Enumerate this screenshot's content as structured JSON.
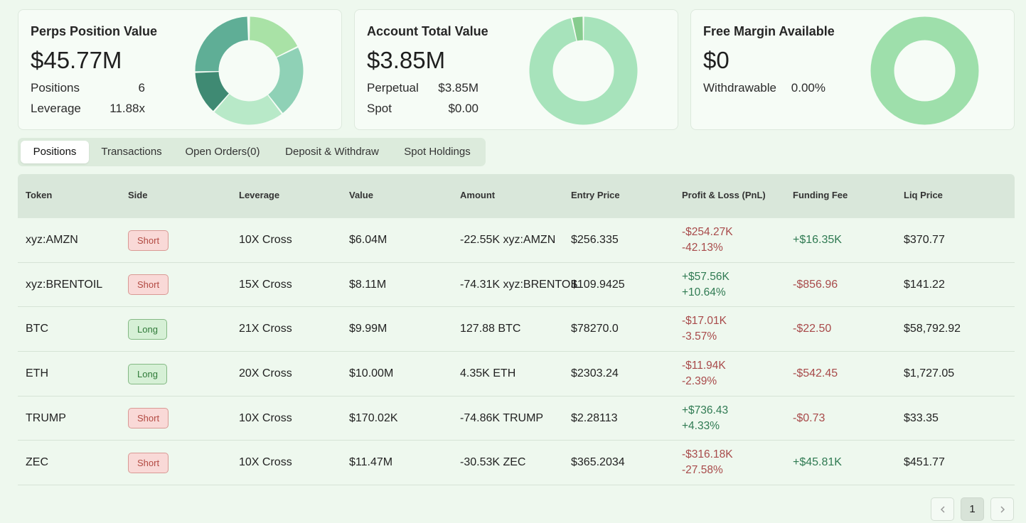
{
  "cards": [
    {
      "title": "Perps Position Value",
      "value": "$45.77M",
      "rows": [
        {
          "label": "Positions",
          "value": "6"
        },
        {
          "label": "Leverage",
          "value": "11.88x"
        }
      ]
    },
    {
      "title": "Account Total Value",
      "value": "$3.85M",
      "rows": [
        {
          "label": "Perpetual",
          "value": "$3.85M"
        },
        {
          "label": "Spot",
          "value": "$0.00"
        }
      ]
    },
    {
      "title": "Free Margin Available",
      "value": "$0",
      "rows": [
        {
          "label": "Withdrawable",
          "value": "0.00%"
        }
      ]
    }
  ],
  "donuts": [
    {
      "name": "perps-donut",
      "slices": [
        {
          "value": 8.11,
          "color": "#a9e2a6"
        },
        {
          "value": 9.99,
          "color": "#8fd1b6"
        },
        {
          "value": 10.0,
          "color": "#b8e9c8"
        },
        {
          "value": 6.04,
          "color": "#3f8a73"
        },
        {
          "value": 11.47,
          "color": "#5fae96"
        },
        {
          "value": 0.17,
          "color": "#c9efc9"
        }
      ]
    },
    {
      "name": "account-donut",
      "slices": [
        {
          "value": 96.5,
          "color": "#a7e3bb"
        },
        {
          "value": 3.5,
          "color": "#86cc8e"
        }
      ]
    },
    {
      "name": "margin-donut",
      "slices": [
        {
          "value": 100,
          "color": "#9edfab"
        }
      ]
    }
  ],
  "tabs": [
    {
      "label": "Positions",
      "active": true
    },
    {
      "label": "Transactions",
      "active": false
    },
    {
      "label": "Open Orders(0)",
      "active": false
    },
    {
      "label": "Deposit & Withdraw",
      "active": false
    },
    {
      "label": "Spot Holdings",
      "active": false
    }
  ],
  "table": {
    "columns": [
      "Token",
      "Side",
      "Leverage",
      "Value",
      "Amount",
      "Entry Price",
      "Profit & Loss (PnL)",
      "Funding Fee",
      "Liq Price"
    ],
    "rows": [
      {
        "token": "xyz:AMZN",
        "side": "Short",
        "leverage": "10X Cross",
        "value": "$6.04M",
        "amount": "-22.55K xyz:AMZN",
        "entry": "$256.335",
        "pnl": "-$254.27K",
        "pnl_pct": "-42.13%",
        "funding": "+$16.35K",
        "liq": "$370.77"
      },
      {
        "token": "xyz:BRENTOIL",
        "side": "Short",
        "leverage": "15X Cross",
        "value": "$8.11M",
        "amount": "-74.31K xyz:BRENTOIL",
        "entry": "$109.9425",
        "pnl": "+$57.56K",
        "pnl_pct": "+10.64%",
        "funding": "-$856.96",
        "liq": "$141.22"
      },
      {
        "token": "BTC",
        "side": "Long",
        "leverage": "21X Cross",
        "value": "$9.99M",
        "amount": "127.88 BTC",
        "entry": "$78270.0",
        "pnl": "-$17.01K",
        "pnl_pct": "-3.57%",
        "funding": "-$22.50",
        "liq": "$58,792.92"
      },
      {
        "token": "ETH",
        "side": "Long",
        "leverage": "20X Cross",
        "value": "$10.00M",
        "amount": "4.35K ETH",
        "entry": "$2303.24",
        "pnl": "-$11.94K",
        "pnl_pct": "-2.39%",
        "funding": "-$542.45",
        "liq": "$1,727.05"
      },
      {
        "token": "TRUMP",
        "side": "Short",
        "leverage": "10X Cross",
        "value": "$170.02K",
        "amount": "-74.86K TRUMP",
        "entry": "$2.28113",
        "pnl": "+$736.43",
        "pnl_pct": "+4.33%",
        "funding": "-$0.73",
        "liq": "$33.35"
      },
      {
        "token": "ZEC",
        "side": "Short",
        "leverage": "10X Cross",
        "value": "$11.47M",
        "amount": "-30.53K ZEC",
        "entry": "$365.2034",
        "pnl": "-$316.18K",
        "pnl_pct": "-27.58%",
        "funding": "+$45.81K",
        "liq": "$451.77"
      }
    ]
  },
  "pagination": {
    "prev_icon": "chevron-left-icon",
    "current_page": "1",
    "next_icon": "chevron-right-icon"
  }
}
